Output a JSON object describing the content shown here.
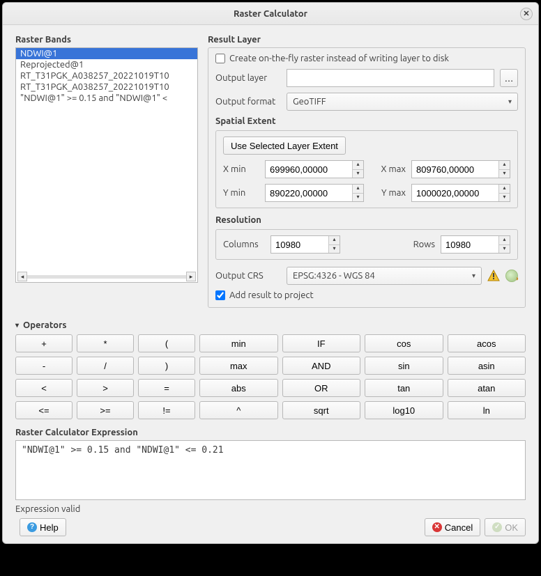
{
  "title": "Raster Calculator",
  "bands_label": "Raster Bands",
  "bands": [
    "NDWI@1",
    "Reprojected@1",
    "RT_T31PGK_A038257_20221019T10",
    "RT_T31PGK_A038257_20221019T10",
    "\"NDWI@1\" >= 0.15 and \"NDWI@1\" <"
  ],
  "bands_selected_index": 0,
  "result": {
    "label": "Result Layer",
    "on_the_fly_label": "Create on-the-fly raster instead of writing layer to disk",
    "on_the_fly": false,
    "output_layer_label": "Output layer",
    "output_layer": "",
    "browse_label": "…",
    "output_format_label": "Output format",
    "output_format": "GeoTIFF",
    "spatial_extent_label": "Spatial Extent",
    "use_extent_label": "Use Selected Layer Extent",
    "xmin_label": "X min",
    "xmin": "699960,00000",
    "xmax_label": "X max",
    "xmax": "809760,00000",
    "ymin_label": "Y min",
    "ymin": "890220,00000",
    "ymax_label": "Y max",
    "ymax": "1000020,00000",
    "resolution_label": "Resolution",
    "columns_label": "Columns",
    "columns": "10980",
    "rows_label": "Rows",
    "rows": "10980",
    "output_crs_label": "Output CRS",
    "output_crs": "EPSG:4326 - WGS 84",
    "add_to_project_label": "Add result to project",
    "add_to_project": true
  },
  "operators_label": "Operators",
  "operators": [
    "+",
    "*",
    "(",
    "min",
    "IF",
    "cos",
    "acos",
    "-",
    "/",
    ")",
    "max",
    "AND",
    "sin",
    "asin",
    "<",
    ">",
    "=",
    "abs",
    "OR",
    "tan",
    "atan",
    "<=",
    ">=",
    "!=",
    "^",
    "sqrt",
    "log10",
    "ln"
  ],
  "expression_label": "Raster Calculator Expression",
  "expression": "\"NDWI@1\" >= 0.15 and \"NDWI@1\" <= 0.21",
  "status": "Expression valid",
  "buttons": {
    "help": "Help",
    "cancel": "Cancel",
    "ok": "OK"
  }
}
